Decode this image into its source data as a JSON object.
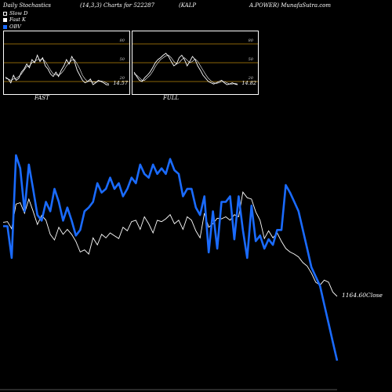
{
  "header": {
    "title_left": "Daily Stochastics",
    "params": "(14,3,3) Charts for 522287",
    "symbol": "(KALP",
    "symbol_tail": "A.POWER) MunafaSutra.com"
  },
  "legend": [
    {
      "label": "Slow D",
      "color": "#000000"
    },
    {
      "label": "Fast K",
      "color": "#ffffff"
    },
    {
      "label": "OBV",
      "color": "#1a6bff"
    }
  ],
  "panels": {
    "fast": {
      "label": "FAST",
      "value": "14.57",
      "levels": [
        "80",
        "50",
        "20"
      ]
    },
    "full": {
      "label": "FULL",
      "value": "14.82",
      "levels": [
        "80",
        "50",
        "20"
      ]
    }
  },
  "close_label": "1164.60Close",
  "colors": {
    "price": "#ffffff",
    "obv": "#1a6bff",
    "level_line": "#b8860b"
  },
  "chart_data": [
    {
      "type": "line",
      "title": "FAST",
      "ylim": [
        0,
        100
      ],
      "levels": [
        80,
        50,
        20
      ],
      "series": [
        {
          "name": "Fast K",
          "values": [
            27,
            24,
            18,
            30,
            22,
            25,
            35,
            40,
            48,
            42,
            55,
            50,
            62,
            52,
            58,
            45,
            40,
            32,
            28,
            35,
            28,
            38,
            45,
            55,
            48,
            60,
            52,
            38,
            30,
            22,
            18,
            20,
            24,
            15,
            18,
            22,
            20,
            18,
            15,
            14.57
          ]
        },
        {
          "name": "Slow D",
          "values": [
            25,
            24,
            22,
            24,
            25,
            28,
            32,
            38,
            44,
            45,
            50,
            52,
            55,
            55,
            56,
            52,
            45,
            38,
            32,
            31,
            30,
            33,
            38,
            45,
            50,
            54,
            55,
            48,
            40,
            30,
            24,
            20,
            21,
            19,
            19,
            20,
            21,
            20,
            18,
            16
          ]
        }
      ]
    },
    {
      "type": "line",
      "title": "FULL",
      "ylim": [
        0,
        100
      ],
      "levels": [
        80,
        50,
        20
      ],
      "series": [
        {
          "name": "Fast K",
          "values": [
            35,
            28,
            22,
            20,
            26,
            30,
            35,
            42,
            50,
            55,
            58,
            62,
            65,
            60,
            52,
            45,
            48,
            58,
            62,
            55,
            45,
            52,
            60,
            55,
            45,
            38,
            30,
            25,
            20,
            18,
            16,
            18,
            20,
            22,
            18,
            15,
            16,
            18,
            16,
            14.82
          ]
        },
        {
          "name": "Slow D",
          "values": [
            32,
            30,
            26,
            22,
            22,
            26,
            30,
            36,
            44,
            50,
            55,
            58,
            61,
            62,
            58,
            52,
            48,
            50,
            55,
            58,
            54,
            50,
            52,
            56,
            52,
            45,
            38,
            31,
            25,
            21,
            18,
            17,
            18,
            20,
            20,
            18,
            16,
            16,
            17,
            16
          ]
        }
      ]
    },
    {
      "type": "line",
      "title": "",
      "series": [
        {
          "name": "Close",
          "values": [
            273,
            272,
            282,
            247,
            245,
            260,
            240,
            257,
            276,
            263,
            270,
            290,
            298,
            280,
            290,
            283,
            290,
            300,
            315,
            312,
            318,
            295,
            305,
            290,
            295,
            288,
            292,
            296,
            280,
            285,
            272,
            270,
            283,
            265,
            275,
            288,
            270,
            272,
            268,
            262,
            275,
            270,
            283,
            265,
            270,
            285,
            295,
            260,
            280,
            275,
            267,
            268,
            265,
            270,
            262,
            265,
            230,
            238,
            240,
            258,
            270,
            296,
            285,
            295,
            288,
            300,
            310,
            315,
            318,
            322,
            330,
            335,
            345,
            358,
            362,
            355,
            358,
            372,
            378
          ]
        },
        {
          "name": "OBV",
          "values": [
            388,
            388,
            405,
            350,
            357,
            380,
            355,
            368,
            382,
            385,
            375,
            380,
            368,
            375,
            385,
            378,
            385,
            393,
            390,
            380,
            378,
            375,
            365,
            370,
            368,
            362,
            368,
            365,
            372,
            368,
            362,
            365,
            355,
            360,
            362,
            355,
            360,
            357,
            360,
            352,
            358,
            360,
            372,
            368,
            368,
            378,
            382,
            372,
            402,
            380,
            400,
            375,
            375,
            372,
            395,
            372,
            390,
            405,
            377,
            396,
            393,
            400,
            395,
            398,
            390,
            390,
            366,
            370,
            375,
            380,
            390,
            400,
            410,
            415,
            420,
            430,
            440,
            450,
            460
          ]
        }
      ]
    }
  ]
}
